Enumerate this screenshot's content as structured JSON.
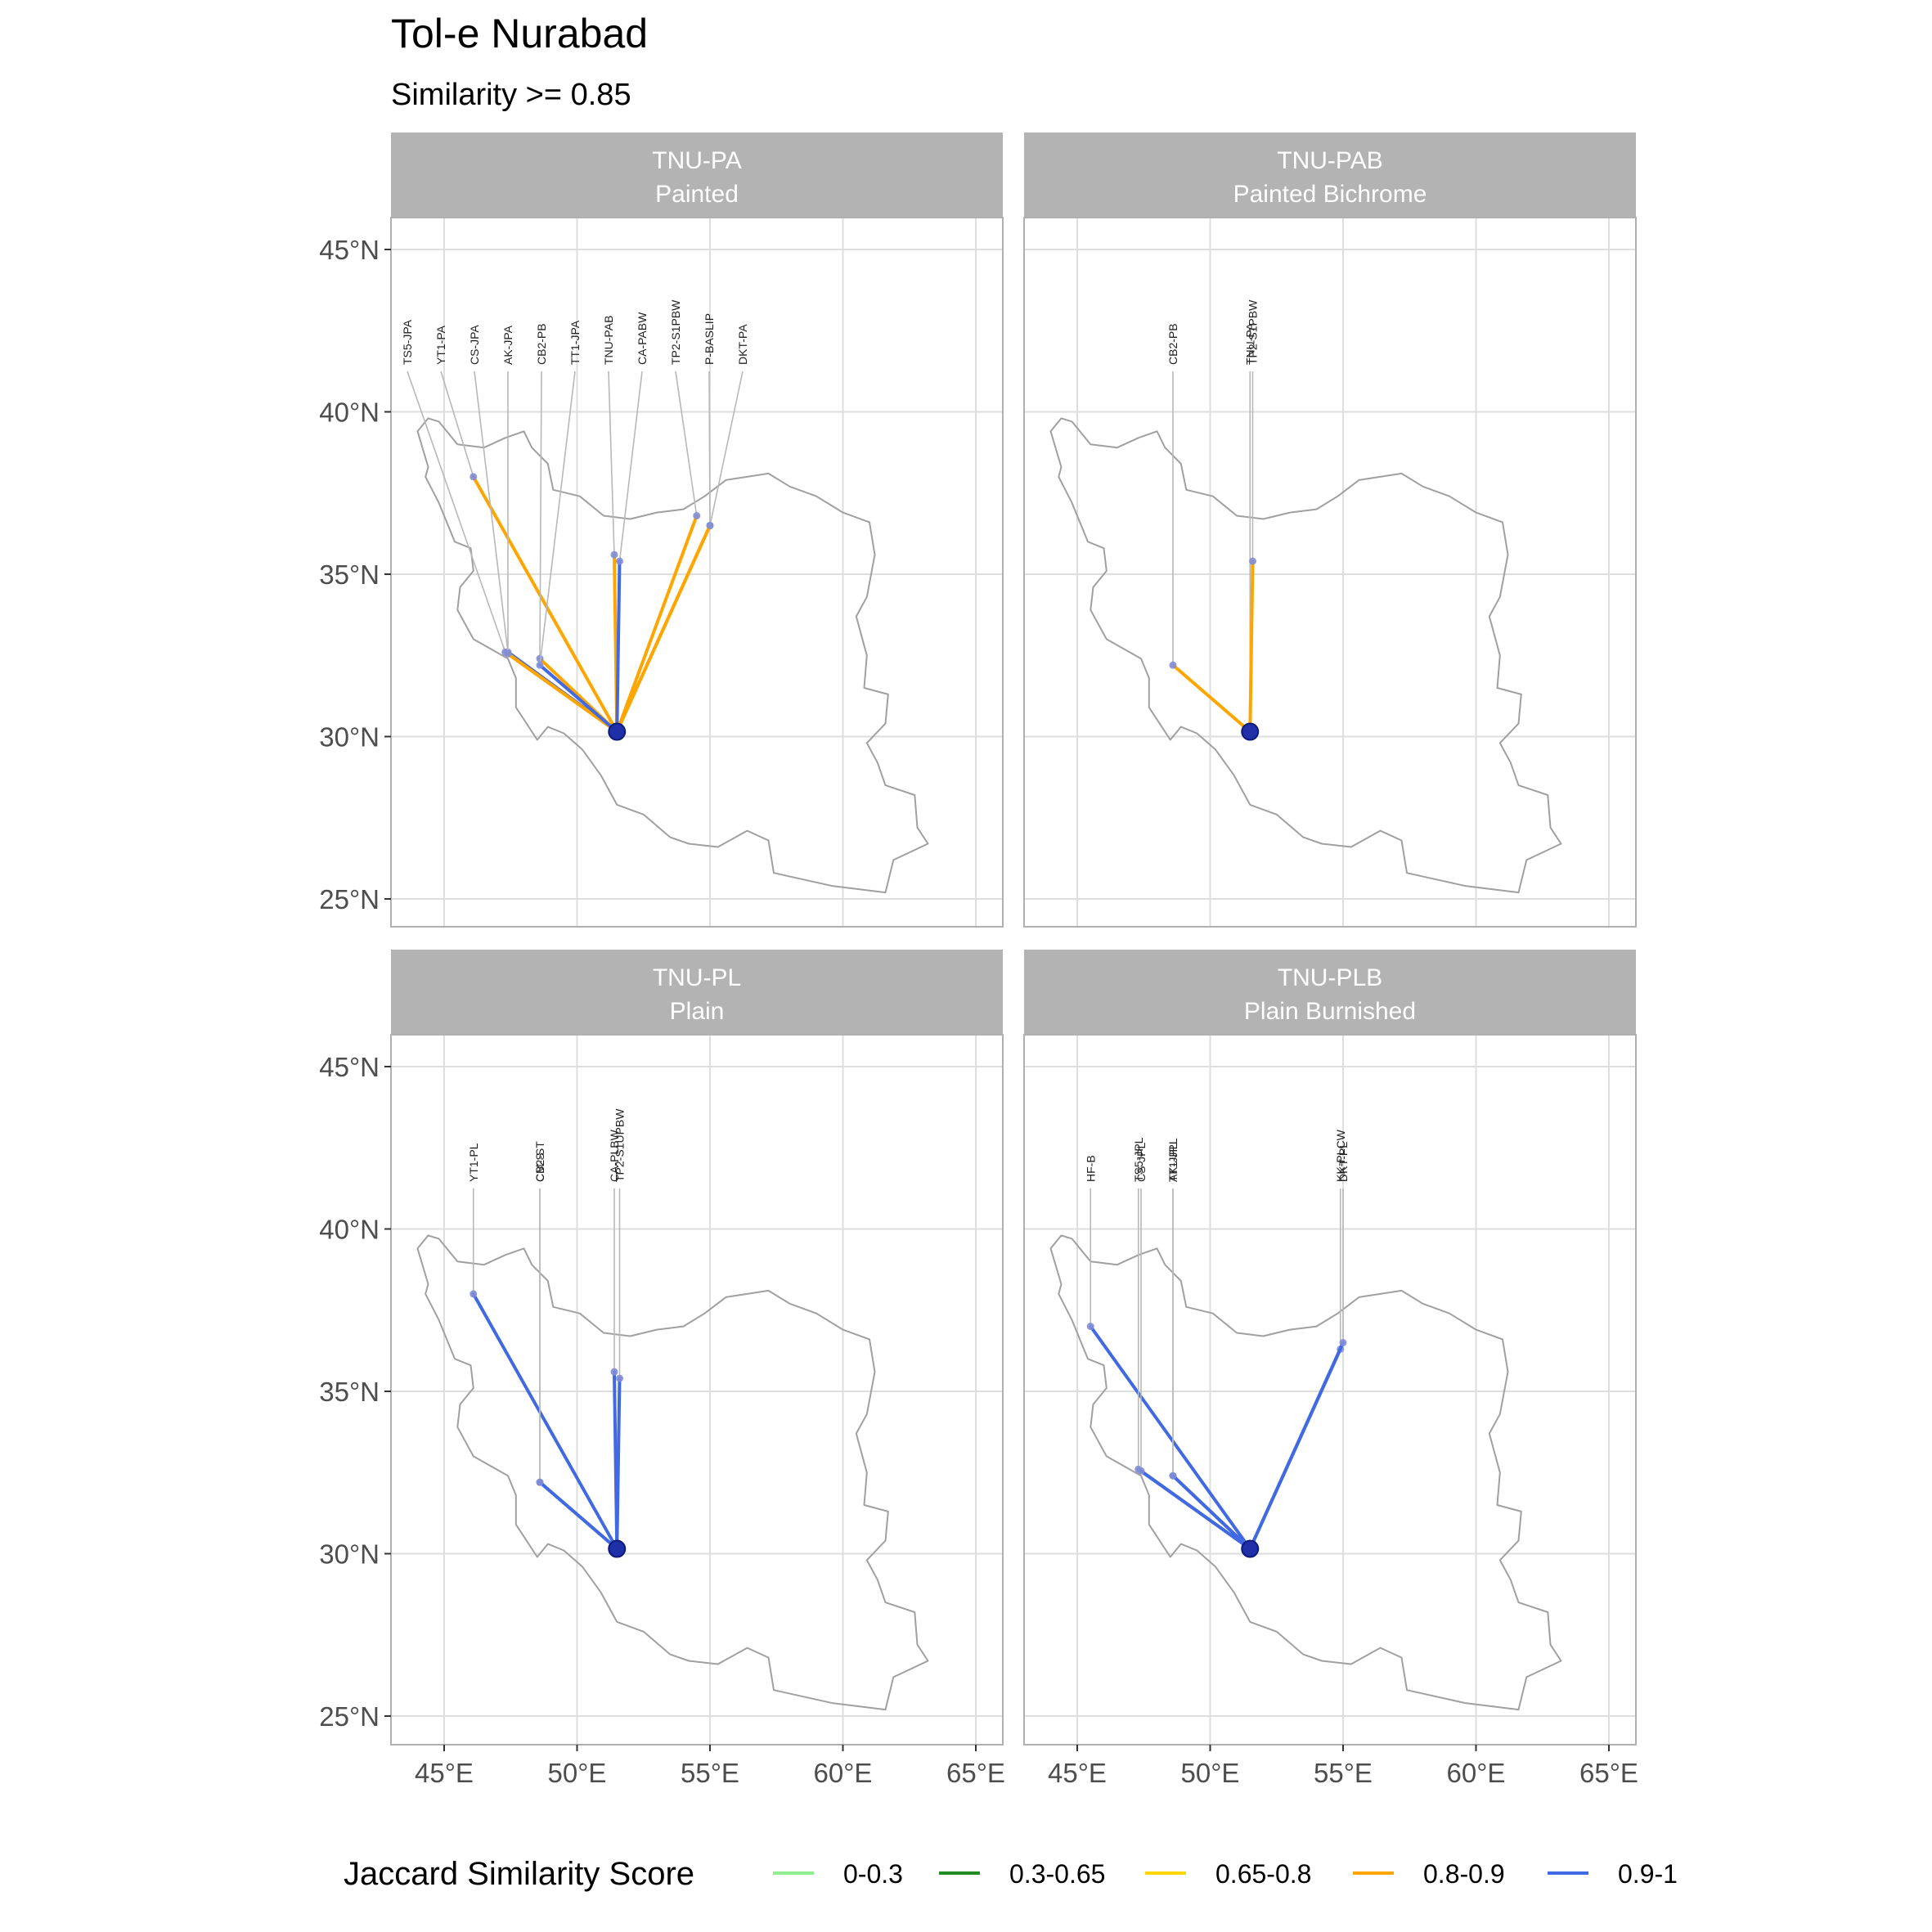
{
  "title": "Tol-e Nurabad",
  "subtitle": "Similarity >= 0.85",
  "chart_data": {
    "type": "map-network",
    "x_ticks": [
      "45°E",
      "50°E",
      "55°E",
      "60°E",
      "65°E"
    ],
    "y_ticks": [
      "25°N",
      "30°N",
      "35°N",
      "40°N",
      "45°N"
    ],
    "xlim": [
      43,
      66
    ],
    "ylim": [
      24.1,
      46
    ],
    "grid": true,
    "legend": {
      "title": "Jaccard Similarity Score",
      "position": "bottom",
      "items": [
        {
          "label": "0-0.3",
          "color": "#90ee90"
        },
        {
          "label": "0.3-0.65",
          "color": "#228b22"
        },
        {
          "label": "0.65-0.8",
          "color": "#ffd700"
        },
        {
          "label": "0.8-0.9",
          "color": "#ffa500"
        },
        {
          "label": "0.9-1",
          "color": "#4169e1"
        }
      ]
    },
    "origin": {
      "lon": 51.5,
      "lat": 30.15
    },
    "border": [
      [
        44.0,
        39.4
      ],
      [
        44.4,
        39.8
      ],
      [
        44.8,
        39.7
      ],
      [
        45.5,
        39.0
      ],
      [
        46.5,
        38.9
      ],
      [
        47.3,
        39.2
      ],
      [
        48.0,
        39.4
      ],
      [
        48.3,
        38.9
      ],
      [
        48.9,
        38.4
      ],
      [
        49.1,
        37.6
      ],
      [
        50.1,
        37.4
      ],
      [
        51.0,
        36.8
      ],
      [
        52.0,
        36.7
      ],
      [
        53.0,
        36.9
      ],
      [
        54.0,
        37.0
      ],
      [
        54.8,
        37.4
      ],
      [
        55.6,
        37.9
      ],
      [
        56.4,
        38.0
      ],
      [
        57.2,
        38.1
      ],
      [
        58.0,
        37.7
      ],
      [
        59.0,
        37.4
      ],
      [
        60.0,
        36.9
      ],
      [
        61.0,
        36.6
      ],
      [
        61.2,
        35.6
      ],
      [
        60.9,
        34.3
      ],
      [
        60.5,
        33.7
      ],
      [
        60.9,
        32.5
      ],
      [
        60.8,
        31.5
      ],
      [
        61.7,
        31.3
      ],
      [
        61.6,
        30.4
      ],
      [
        60.9,
        29.8
      ],
      [
        61.3,
        29.2
      ],
      [
        61.6,
        28.5
      ],
      [
        62.7,
        28.2
      ],
      [
        62.8,
        27.2
      ],
      [
        63.2,
        26.7
      ],
      [
        61.9,
        26.2
      ],
      [
        61.6,
        25.2
      ],
      [
        59.6,
        25.4
      ],
      [
        58.5,
        25.6
      ],
      [
        57.4,
        25.8
      ],
      [
        57.2,
        26.8
      ],
      [
        56.4,
        27.1
      ],
      [
        55.3,
        26.6
      ],
      [
        54.2,
        26.7
      ],
      [
        53.5,
        26.9
      ],
      [
        52.5,
        27.6
      ],
      [
        51.5,
        27.9
      ],
      [
        50.9,
        28.8
      ],
      [
        50.2,
        29.6
      ],
      [
        49.5,
        30.1
      ],
      [
        48.9,
        30.3
      ],
      [
        48.5,
        29.9
      ],
      [
        47.7,
        30.9
      ],
      [
        47.7,
        31.8
      ],
      [
        47.4,
        32.4
      ],
      [
        46.1,
        33.0
      ],
      [
        45.5,
        33.9
      ],
      [
        45.6,
        34.6
      ],
      [
        46.1,
        35.1
      ],
      [
        46.0,
        35.8
      ],
      [
        45.4,
        36.0
      ],
      [
        44.8,
        37.2
      ],
      [
        44.3,
        38.0
      ],
      [
        44.4,
        38.3
      ],
      [
        44.0,
        39.4
      ]
    ],
    "panels": [
      {
        "strip_code": "TNU-PA",
        "strip_name": "Painted",
        "links": [
          {
            "label": "TS5-JPA",
            "lon": 47.3,
            "lat": 32.6,
            "bin": "0.8-0.9"
          },
          {
            "label": "YT1-PA",
            "lon": 46.1,
            "lat": 38.0,
            "bin": "0.8-0.9"
          },
          {
            "label": "CS-JPA",
            "lon": 47.4,
            "lat": 32.6,
            "bin": "0.9-1"
          },
          {
            "label": "AK-JPA",
            "lon": 47.4,
            "lat": 32.55,
            "bin": "0.8-0.9"
          },
          {
            "label": "CB2-PB",
            "lon": 48.6,
            "lat": 32.4,
            "bin": "0.8-0.9"
          },
          {
            "label": "TT1-JPA",
            "lon": 48.6,
            "lat": 32.2,
            "bin": "0.9-1"
          },
          {
            "label": "TNU-PAB",
            "lon": 51.4,
            "lat": 35.6,
            "bin": "0.8-0.9"
          },
          {
            "label": "CA-PABW",
            "lon": 51.6,
            "lat": 35.4,
            "bin": "0.9-1"
          },
          {
            "label": "TP2-S1PBW",
            "lon": 54.5,
            "lat": 36.8,
            "bin": "0.8-0.9"
          },
          {
            "label": "P-BASLIP",
            "lon": 55.0,
            "lat": 36.5,
            "bin": "0.8-0.9"
          },
          {
            "label": "DKT-PA",
            "lon": 55.0,
            "lat": 36.5,
            "bin": "0.8-0.9"
          }
        ]
      },
      {
        "strip_code": "TNU-PAB",
        "strip_name": "Painted Bichrome",
        "links": [
          {
            "label": "CB2-PB",
            "lon": 48.6,
            "lat": 32.2,
            "bin": "0.8-0.9"
          },
          {
            "label": "TNU-PA",
            "lon": 51.5,
            "lat": 30.2,
            "bin": "0.8-0.9"
          },
          {
            "label": "TP2-S1PBW",
            "lon": 51.6,
            "lat": 35.4,
            "bin": "0.8-0.9"
          }
        ]
      },
      {
        "strip_code": "TNU-PL",
        "strip_name": "Plain",
        "links": [
          {
            "label": "YT1-PL",
            "lon": 46.1,
            "lat": 38.0,
            "bin": "0.9-1"
          },
          {
            "label": "CB2-ST",
            "lon": 48.6,
            "lat": 32.2,
            "bin": "0.9-1"
          },
          {
            "label": "CM-S",
            "lon": 48.6,
            "lat": 32.2,
            "bin": "0.9-1"
          },
          {
            "label": "CA-PLBW",
            "lon": 51.4,
            "lat": 35.6,
            "bin": "0.9-1"
          },
          {
            "label": "TP2-S1UPBW",
            "lon": 51.6,
            "lat": 35.4,
            "bin": "0.9-1"
          }
        ]
      },
      {
        "strip_code": "TNU-PLB",
        "strip_name": "Plain Burnished",
        "links": [
          {
            "label": "HF-B",
            "lon": 45.5,
            "lat": 37.0,
            "bin": "0.9-1"
          },
          {
            "label": "TS5-JPL",
            "lon": 47.3,
            "lat": 32.6,
            "bin": "0.9-1"
          },
          {
            "label": "CS-JPL",
            "lon": 47.4,
            "lat": 32.55,
            "bin": "0.9-1"
          },
          {
            "label": "AK-JPL",
            "lon": 48.6,
            "lat": 32.4,
            "bin": "0.9-1"
          },
          {
            "label": "TT1-JPL",
            "lon": 48.6,
            "lat": 32.4,
            "bin": "0.9-1"
          },
          {
            "label": "KK-PLCW",
            "lon": 54.9,
            "lat": 36.3,
            "bin": "0.9-1"
          },
          {
            "label": "DKT-PL",
            "lon": 55.0,
            "lat": 36.5,
            "bin": "0.9-1"
          }
        ]
      }
    ]
  }
}
